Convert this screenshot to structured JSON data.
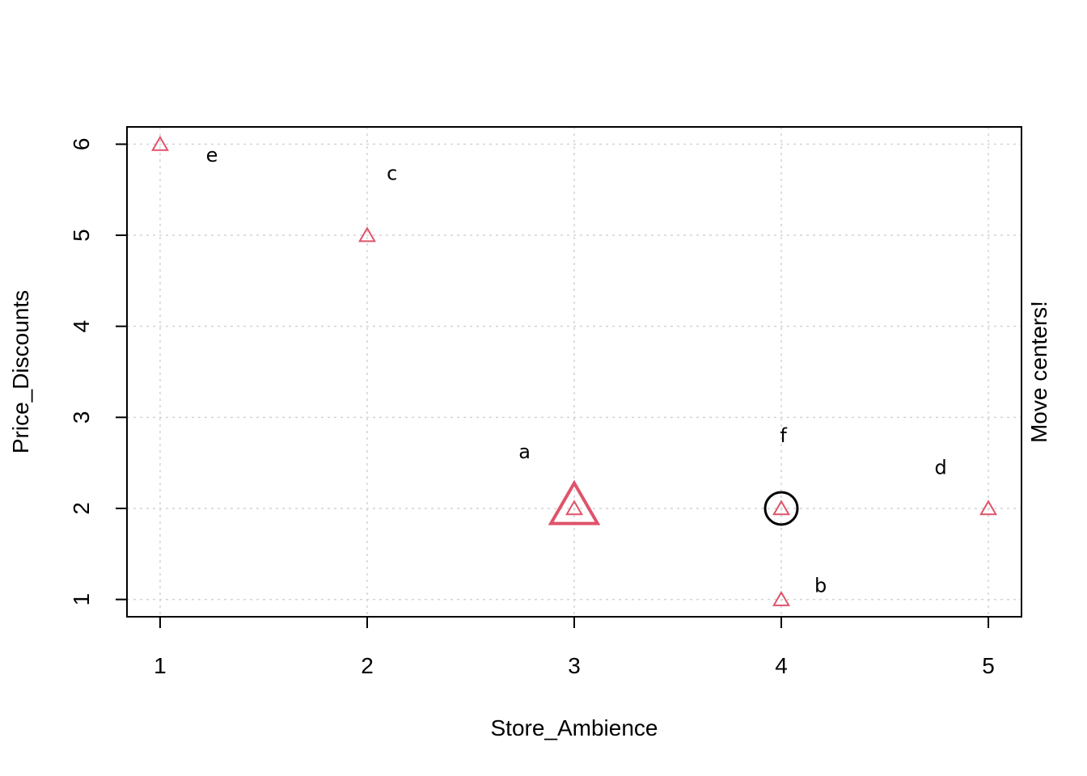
{
  "chart_data": {
    "type": "scatter",
    "title": "",
    "xlabel": "Store_Ambience",
    "ylabel": "Price_Discounts",
    "right_label": "Move centers!",
    "xlim": [
      0.84,
      5.16
    ],
    "ylim": [
      0.81,
      6.19
    ],
    "x_ticks": [
      "1",
      "2",
      "3",
      "4",
      "5"
    ],
    "y_ticks": [
      "1",
      "2",
      "3",
      "4",
      "5",
      "6"
    ],
    "grid": true,
    "points": [
      {
        "x": 1,
        "y": 6
      },
      {
        "x": 2,
        "y": 5
      },
      {
        "x": 3,
        "y": 2
      },
      {
        "x": 4,
        "y": 2
      },
      {
        "x": 4,
        "y": 1
      },
      {
        "x": 5,
        "y": 2
      }
    ],
    "point_labels": [
      {
        "text": "e",
        "x": 1.25,
        "y": 5.88
      },
      {
        "text": "c",
        "x": 2.12,
        "y": 5.68
      },
      {
        "text": "a",
        "x": 2.76,
        "y": 2.62
      },
      {
        "text": "f",
        "x": 4.01,
        "y": 2.8
      },
      {
        "text": "d",
        "x": 4.77,
        "y": 2.45
      },
      {
        "text": "b",
        "x": 4.19,
        "y": 1.15
      }
    ],
    "centers": [
      {
        "x": 3,
        "y": 2,
        "marker": "large-triangle"
      },
      {
        "x": 4,
        "y": 2,
        "marker": "circle"
      }
    ],
    "colors": {
      "points": "#DF536B",
      "circle": "#000000",
      "grid": "#D3D3D3"
    }
  }
}
